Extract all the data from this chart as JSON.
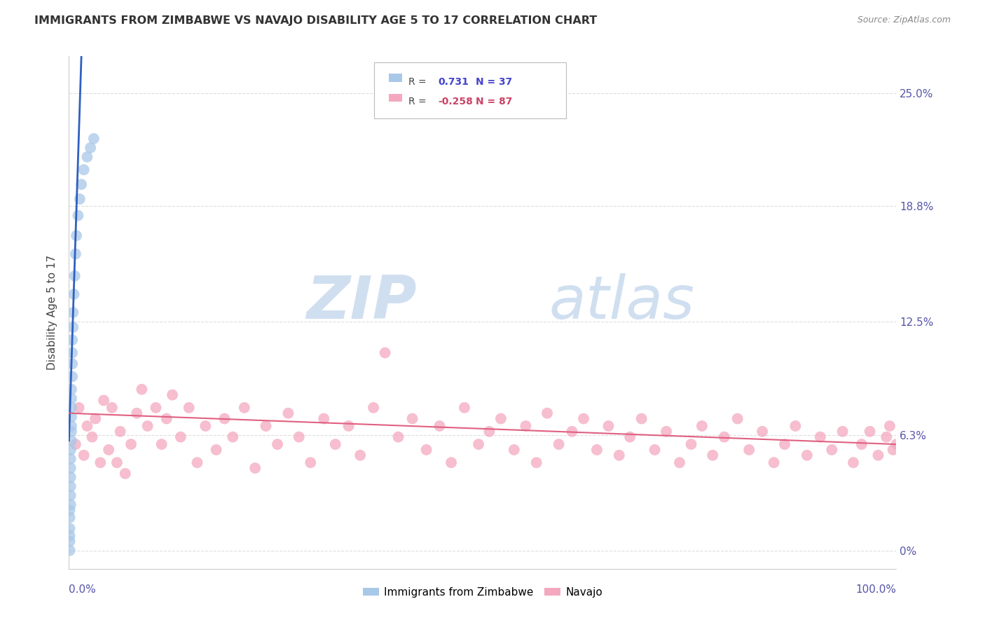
{
  "title": "IMMIGRANTS FROM ZIMBABWE VS NAVAJO DISABILITY AGE 5 TO 17 CORRELATION CHART",
  "source": "Source: ZipAtlas.com",
  "ylabel": "Disability Age 5 to 17",
  "ytick_labels": [
    "0%",
    "6.3%",
    "12.5%",
    "18.8%",
    "25.0%"
  ],
  "ytick_values": [
    0.0,
    0.063,
    0.125,
    0.188,
    0.25
  ],
  "xlim": [
    0.0,
    1.0
  ],
  "ylim": [
    -0.01,
    0.27
  ],
  "r_blue": "0.731",
  "n_blue": "37",
  "r_pink": "-0.258",
  "n_pink": "87",
  "color_blue": "#a8c8e8",
  "color_pink": "#f4a8c0",
  "line_color_blue": "#3060c0",
  "line_color_pink": "#e06080",
  "watermark_zip": "ZIP",
  "watermark_atlas": "atlas",
  "watermark_color": "#d0dff0",
  "legend_label_blue": "Immigrants from Zimbabwe",
  "legend_label_pink": "Navajo",
  "blue_x": [
    0.001,
    0.001,
    0.001,
    0.001,
    0.001,
    0.001,
    0.002,
    0.002,
    0.002,
    0.002,
    0.002,
    0.002,
    0.002,
    0.003,
    0.003,
    0.003,
    0.003,
    0.003,
    0.003,
    0.003,
    0.004,
    0.004,
    0.004,
    0.004,
    0.005,
    0.005,
    0.006,
    0.007,
    0.008,
    0.009,
    0.011,
    0.013,
    0.015,
    0.018,
    0.022,
    0.026,
    0.03
  ],
  "blue_y": [
    0.0,
    0.005,
    0.008,
    0.012,
    0.018,
    0.022,
    0.025,
    0.03,
    0.035,
    0.04,
    0.045,
    0.05,
    0.055,
    0.06,
    0.065,
    0.068,
    0.073,
    0.078,
    0.083,
    0.088,
    0.095,
    0.102,
    0.108,
    0.115,
    0.122,
    0.13,
    0.14,
    0.15,
    0.162,
    0.172,
    0.183,
    0.192,
    0.2,
    0.208,
    0.215,
    0.22,
    0.225
  ],
  "pink_x": [
    0.008,
    0.012,
    0.018,
    0.022,
    0.028,
    0.032,
    0.038,
    0.042,
    0.048,
    0.052,
    0.058,
    0.062,
    0.068,
    0.075,
    0.082,
    0.088,
    0.095,
    0.105,
    0.112,
    0.118,
    0.125,
    0.135,
    0.145,
    0.155,
    0.165,
    0.178,
    0.188,
    0.198,
    0.212,
    0.225,
    0.238,
    0.252,
    0.265,
    0.278,
    0.292,
    0.308,
    0.322,
    0.338,
    0.352,
    0.368,
    0.382,
    0.398,
    0.415,
    0.432,
    0.448,
    0.462,
    0.478,
    0.495,
    0.508,
    0.522,
    0.538,
    0.552,
    0.565,
    0.578,
    0.592,
    0.608,
    0.622,
    0.638,
    0.652,
    0.665,
    0.678,
    0.692,
    0.708,
    0.722,
    0.738,
    0.752,
    0.765,
    0.778,
    0.792,
    0.808,
    0.822,
    0.838,
    0.852,
    0.865,
    0.878,
    0.892,
    0.908,
    0.922,
    0.935,
    0.948,
    0.958,
    0.968,
    0.978,
    0.988,
    0.992,
    0.996,
    1.0
  ],
  "pink_y": [
    0.058,
    0.078,
    0.052,
    0.068,
    0.062,
    0.072,
    0.048,
    0.082,
    0.055,
    0.078,
    0.048,
    0.065,
    0.042,
    0.058,
    0.075,
    0.088,
    0.068,
    0.078,
    0.058,
    0.072,
    0.085,
    0.062,
    0.078,
    0.048,
    0.068,
    0.055,
    0.072,
    0.062,
    0.078,
    0.045,
    0.068,
    0.058,
    0.075,
    0.062,
    0.048,
    0.072,
    0.058,
    0.068,
    0.052,
    0.078,
    0.108,
    0.062,
    0.072,
    0.055,
    0.068,
    0.048,
    0.078,
    0.058,
    0.065,
    0.072,
    0.055,
    0.068,
    0.048,
    0.075,
    0.058,
    0.065,
    0.072,
    0.055,
    0.068,
    0.052,
    0.062,
    0.072,
    0.055,
    0.065,
    0.048,
    0.058,
    0.068,
    0.052,
    0.062,
    0.072,
    0.055,
    0.065,
    0.048,
    0.058,
    0.068,
    0.052,
    0.062,
    0.055,
    0.065,
    0.048,
    0.058,
    0.065,
    0.052,
    0.062,
    0.068,
    0.055,
    0.058
  ],
  "blue_trend_x0": 0.0,
  "blue_trend_x1": 0.03,
  "pink_trend_x0": 0.0,
  "pink_trend_x1": 1.0,
  "pink_trend_y0": 0.075,
  "pink_trend_y1": 0.058
}
